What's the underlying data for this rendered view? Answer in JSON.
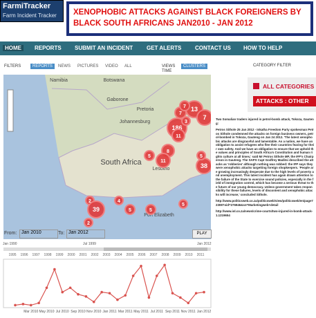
{
  "header": {
    "logo": "FarmiTracker",
    "tagline": "Farm Incident Tracker",
    "title": "XENOPHOBIC ATTACKS AGAINST BLACK FOREIGNERS BY BLACK SOUTH AFRICANS JAN2010 - JAN 2012"
  },
  "nav": [
    "HOME",
    "REPORTS",
    "SUBMIT AN INCIDENT",
    "GET ALERTS",
    "CONTACT US",
    "HOW TO HELP"
  ],
  "filters": {
    "label": "FILTERS",
    "items": [
      "REPORTS",
      "NEWS",
      "PICTURES",
      "VIDEO",
      "ALL"
    ],
    "views": "VIEWS",
    "time": "TIME",
    "clusters": "CLUSTERS",
    "category": "CATEGORY FILTER"
  },
  "categories": [
    "ALL CATEGORIES",
    "ATTACKS : OTHER"
  ],
  "map": {
    "places": [
      "Namibia",
      "Botswana",
      "Gaborone",
      "Pretoria",
      "Johannesburg",
      "Lesotho",
      "South Africa",
      "Port Elizabeth"
    ],
    "clusters": [
      "13",
      "7",
      "7",
      "186",
      "11",
      "8",
      "5",
      "11",
      "38",
      "3",
      "5",
      "2",
      "39",
      "5",
      "5",
      "4",
      "2",
      "5",
      "7"
    ]
  },
  "article": [
    "Two Somalian traders injured in petrol-bomb attack, Tokoza, Gauteng:",
    "Petros Sithole 25 Jan 2012 - Inkatha Freedom Party spokesman Petros Sithole condemned the attacks on foreign business owners, petrol-bombed in Tokoza, Gauteng on Jan 24 2012. 'The latest xenophobic attacks are disgraceful and lamentable. As a nation, we have an obligation to assist refugees who flee their countries fearing for their own safety. And we have an obligation to ensure that we uphold the values and principles of South Africa's Constitution and human rights culture at all times,' said Mr Petros Sithole MP, the IFP's Chairperson in Gauteng. The SAPS Capt Godfrey Maditsi described the attacks as 'robberies' although nothing was robbed: the IFP says they were xenophobic attacks targetting foreign shopkeepers. 'People are growing increasingly desperate due to the high levels of poverty and unemployment. This latest incident has again drawn attention to the failure of the State to exercise sound policies, especially in the field of immigration control, which has become a serious threat to the future of our young democracy. Unless government takes responsibility for these failures, levels of discontent and xenophobic attacks will increase,' concluded Sithole.",
    "http://www.politicsweb.co.za/politicsweb/view/politicsweb/en/page72308?oid=276946&sn=Marketingweb+detail",
    "http://www.iol.co.za/news/crime-courts/two-injured-in-bomb-attack-1.1219654"
  ],
  "timeline": {
    "from_label": "From:",
    "from": "Jan 2010",
    "to_label": "To:",
    "to": "Jan 2012",
    "play": "PLAY",
    "years": [
      "1995",
      "1996",
      "1997",
      "1998",
      "1999",
      "2000",
      "2001",
      "2002",
      "2003",
      "2004",
      "2005",
      "2006",
      "2007",
      "2008",
      "2009",
      "2010",
      "2011"
    ],
    "slider_left": "Jan 1990",
    "slider_mid": "Jul 1999",
    "slider_right": "Jan 2012"
  },
  "chart_data": {
    "type": "line",
    "categories": [
      null,
      null,
      "Mar 2010",
      null,
      "May 2010",
      null,
      "Jul 2010",
      null,
      "Sep 2010",
      null,
      "Nov 2010",
      null,
      "Jan 2011",
      null,
      "Mar 2011",
      null,
      "May 2011",
      null,
      "Jul 2011",
      null,
      "Sep 2011",
      null,
      "Nov 2011",
      null,
      "Jan 2012"
    ],
    "values": [
      1,
      2,
      1,
      3,
      17,
      34,
      13,
      17,
      11,
      9,
      4,
      13,
      12,
      6,
      10,
      28,
      37,
      8,
      28,
      38,
      12,
      8,
      3,
      12,
      13
    ],
    "ylim": [
      0,
      42
    ],
    "color": "#d9534f"
  }
}
